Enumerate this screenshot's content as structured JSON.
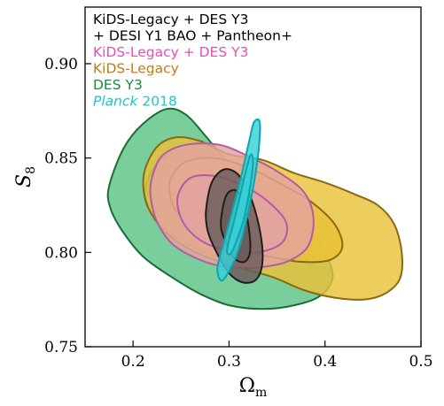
{
  "chart_data": {
    "type": "contour",
    "xlabel": "Ω",
    "xlabel_sub": "m",
    "ylabel": "S",
    "ylabel_sub": "8",
    "xlim": [
      0.15,
      0.5
    ],
    "ylim": [
      0.75,
      0.93
    ],
    "xticks": [
      "0.2",
      "0.3",
      "0.4",
      "0.5"
    ],
    "xtick_values": [
      0.2,
      0.3,
      0.4,
      0.5
    ],
    "yticks": [
      "0.75",
      "0.80",
      "0.85",
      "0.90"
    ],
    "ytick_values": [
      0.75,
      0.8,
      0.85,
      0.9
    ],
    "grid": false,
    "legend_position": "top-left",
    "legend": [
      {
        "text": "KiDS-Legacy + DES Y3",
        "color": "#000000"
      },
      {
        "text": " + DESI Y1 BAO + Pantheon+",
        "color": "#000000"
      },
      {
        "text": "KiDS-Legacy + DES Y3",
        "color": "#e24fbd"
      },
      {
        "text": "KiDS-Legacy",
        "color": "#c57a12"
      },
      {
        "text": "DES Y3",
        "color": "#1a8a3c"
      },
      {
        "italic": "Planck",
        "text": " 2018",
        "color": "#19c6cf"
      }
    ],
    "series": [
      {
        "name": "DES Y3",
        "fill": "#5cc386",
        "edge": "#1a6d34",
        "outer": [
          [
            0.175,
            0.835
          ],
          [
            0.19,
            0.855
          ],
          [
            0.21,
            0.868
          ],
          [
            0.235,
            0.876
          ],
          [
            0.255,
            0.873
          ],
          [
            0.275,
            0.862
          ],
          [
            0.3,
            0.847
          ],
          [
            0.325,
            0.836
          ],
          [
            0.35,
            0.823
          ],
          [
            0.375,
            0.814
          ],
          [
            0.398,
            0.802
          ],
          [
            0.408,
            0.787
          ],
          [
            0.395,
            0.777
          ],
          [
            0.368,
            0.772
          ],
          [
            0.335,
            0.77
          ],
          [
            0.3,
            0.772
          ],
          [
            0.27,
            0.778
          ],
          [
            0.24,
            0.787
          ],
          [
            0.21,
            0.798
          ],
          [
            0.188,
            0.812
          ],
          [
            0.176,
            0.824
          ]
        ],
        "inner": [
          [
            0.213,
            0.835
          ],
          [
            0.225,
            0.847
          ],
          [
            0.245,
            0.853
          ],
          [
            0.27,
            0.85
          ],
          [
            0.3,
            0.842
          ],
          [
            0.325,
            0.83
          ],
          [
            0.35,
            0.818
          ],
          [
            0.36,
            0.81
          ],
          [
            0.355,
            0.802
          ],
          [
            0.335,
            0.796
          ],
          [
            0.3,
            0.796
          ],
          [
            0.27,
            0.801
          ],
          [
            0.245,
            0.808
          ],
          [
            0.225,
            0.817
          ],
          [
            0.214,
            0.826
          ]
        ]
      },
      {
        "name": "KiDS-Legacy",
        "fill": "#e9c23b",
        "edge": "#8a6a10",
        "outer": [
          [
            0.212,
            0.843
          ],
          [
            0.225,
            0.856
          ],
          [
            0.245,
            0.861
          ],
          [
            0.27,
            0.859
          ],
          [
            0.3,
            0.852
          ],
          [
            0.335,
            0.849
          ],
          [
            0.368,
            0.842
          ],
          [
            0.4,
            0.837
          ],
          [
            0.43,
            0.831
          ],
          [
            0.455,
            0.825
          ],
          [
            0.472,
            0.815
          ],
          [
            0.48,
            0.8
          ],
          [
            0.478,
            0.786
          ],
          [
            0.462,
            0.778
          ],
          [
            0.44,
            0.775
          ],
          [
            0.41,
            0.776
          ],
          [
            0.378,
            0.78
          ],
          [
            0.345,
            0.787
          ],
          [
            0.31,
            0.792
          ],
          [
            0.275,
            0.798
          ],
          [
            0.245,
            0.806
          ],
          [
            0.222,
            0.818
          ],
          [
            0.212,
            0.83
          ]
        ],
        "inner": [
          [
            0.24,
            0.84
          ],
          [
            0.255,
            0.848
          ],
          [
            0.285,
            0.85
          ],
          [
            0.32,
            0.845
          ],
          [
            0.355,
            0.836
          ],
          [
            0.385,
            0.827
          ],
          [
            0.41,
            0.815
          ],
          [
            0.418,
            0.803
          ],
          [
            0.405,
            0.796
          ],
          [
            0.375,
            0.795
          ],
          [
            0.34,
            0.798
          ],
          [
            0.3,
            0.803
          ],
          [
            0.265,
            0.811
          ],
          [
            0.245,
            0.822
          ],
          [
            0.238,
            0.832
          ]
        ]
      },
      {
        "name": "KiDS-Legacy + DES Y3",
        "fill": "#e3a3a0",
        "edge": "#b45aa6",
        "outer": [
          [
            0.219,
            0.838
          ],
          [
            0.23,
            0.851
          ],
          [
            0.255,
            0.857
          ],
          [
            0.29,
            0.857
          ],
          [
            0.32,
            0.851
          ],
          [
            0.35,
            0.843
          ],
          [
            0.378,
            0.832
          ],
          [
            0.388,
            0.818
          ],
          [
            0.382,
            0.803
          ],
          [
            0.36,
            0.795
          ],
          [
            0.33,
            0.792
          ],
          [
            0.3,
            0.792
          ],
          [
            0.27,
            0.796
          ],
          [
            0.242,
            0.804
          ],
          [
            0.226,
            0.815
          ],
          [
            0.219,
            0.827
          ]
        ],
        "inner": [
          [
            0.248,
            0.832
          ],
          [
            0.262,
            0.84
          ],
          [
            0.29,
            0.84
          ],
          [
            0.32,
            0.834
          ],
          [
            0.345,
            0.825
          ],
          [
            0.36,
            0.815
          ],
          [
            0.355,
            0.805
          ],
          [
            0.33,
            0.8
          ],
          [
            0.3,
            0.801
          ],
          [
            0.275,
            0.805
          ],
          [
            0.256,
            0.813
          ],
          [
            0.247,
            0.823
          ]
        ]
      },
      {
        "name": "KiDS-Legacy + DES Y3 + DESI Y1 BAO + Pantheon+",
        "fill": "#6b5b5b",
        "edge": "#1e1e1e",
        "outer": [
          [
            0.276,
            0.822
          ],
          [
            0.282,
            0.837
          ],
          [
            0.295,
            0.844
          ],
          [
            0.31,
            0.841
          ],
          [
            0.322,
            0.83
          ],
          [
            0.332,
            0.812
          ],
          [
            0.335,
            0.796
          ],
          [
            0.329,
            0.786
          ],
          [
            0.315,
            0.784
          ],
          [
            0.3,
            0.789
          ],
          [
            0.287,
            0.8
          ],
          [
            0.278,
            0.811
          ]
        ],
        "inner": [
          [
            0.292,
            0.819
          ],
          [
            0.297,
            0.83
          ],
          [
            0.306,
            0.833
          ],
          [
            0.314,
            0.828
          ],
          [
            0.32,
            0.815
          ],
          [
            0.322,
            0.801
          ],
          [
            0.316,
            0.795
          ],
          [
            0.305,
            0.797
          ],
          [
            0.297,
            0.805
          ],
          [
            0.292,
            0.812
          ]
        ]
      },
      {
        "name": "Planck 2018",
        "fill": "#38d0d8",
        "edge": "#0aa6ad",
        "outer": [
          [
            0.288,
            0.792
          ],
          [
            0.296,
            0.808
          ],
          [
            0.305,
            0.825
          ],
          [
            0.313,
            0.841
          ],
          [
            0.321,
            0.859
          ],
          [
            0.326,
            0.869
          ],
          [
            0.332,
            0.869
          ],
          [
            0.331,
            0.855
          ],
          [
            0.326,
            0.837
          ],
          [
            0.318,
            0.817
          ],
          [
            0.309,
            0.8
          ],
          [
            0.3,
            0.79
          ],
          [
            0.292,
            0.785
          ]
        ],
        "inner": [
          [
            0.298,
            0.802
          ],
          [
            0.305,
            0.816
          ],
          [
            0.312,
            0.831
          ],
          [
            0.319,
            0.846
          ],
          [
            0.323,
            0.852
          ],
          [
            0.325,
            0.847
          ],
          [
            0.321,
            0.832
          ],
          [
            0.315,
            0.817
          ],
          [
            0.307,
            0.805
          ],
          [
            0.301,
            0.799
          ]
        ]
      }
    ]
  }
}
